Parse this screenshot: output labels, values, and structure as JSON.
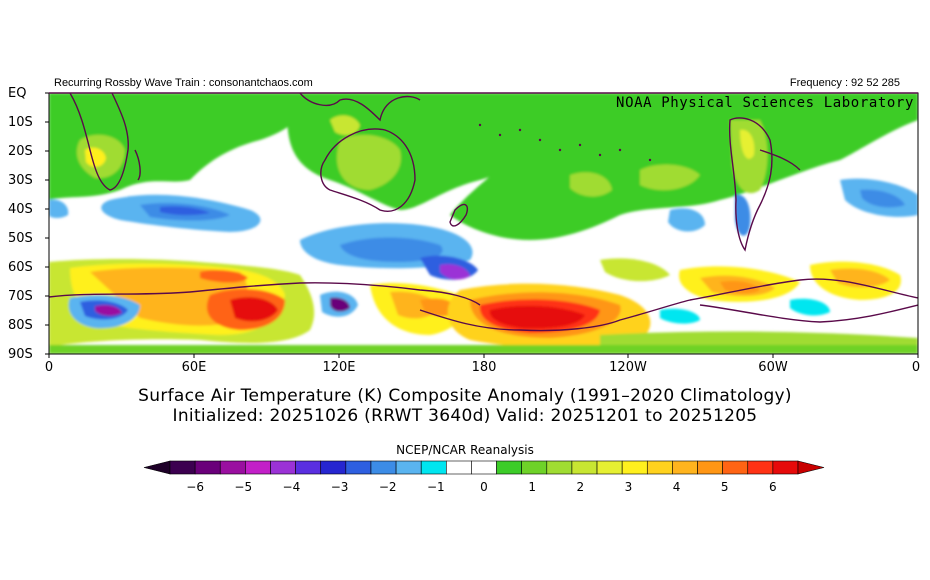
{
  "header": {
    "left_text": "Recurring Rossby Wave Train : consonantchaos.com",
    "right_text": "Frequency : 92 52 285",
    "lab": "NOAA Physical Sciences Laboratory"
  },
  "map": {
    "lat_labels": [
      "EQ",
      "10S",
      "20S",
      "30S",
      "40S",
      "50S",
      "60S",
      "70S",
      "80S",
      "90S"
    ],
    "lon_labels": [
      "0",
      "60E",
      "120E",
      "180",
      "120W",
      "60W",
      "0"
    ]
  },
  "title": {
    "line1": "Surface Air Temperature (K) Composite Anomaly (1991–2020 Climatology)",
    "line2": "Initialized: 20251026 (RRWT 3640d) Valid: 20251201 to 20251205"
  },
  "colorbar": {
    "title": "NCEP/NCAR Reanalysis",
    "labels": [
      "−6",
      "−5",
      "−4",
      "−3",
      "−2",
      "−1",
      "0",
      "1",
      "2",
      "3",
      "4",
      "5",
      "6"
    ],
    "colors": [
      "#3c0050",
      "#6a007a",
      "#9a0fa0",
      "#c21fc8",
      "#9b32d6",
      "#5a2fe0",
      "#2626d0",
      "#2e5fe0",
      "#3c8ce6",
      "#5ab4f0",
      "#00e6f0",
      "#ffffff",
      "#ffffff",
      "#3ccc28",
      "#6ed228",
      "#a0dc32",
      "#c8e632",
      "#e6f032",
      "#fff01e",
      "#ffd21e",
      "#ffb41e",
      "#ff9614",
      "#ff6414",
      "#ff3214",
      "#e60a0a"
    ],
    "under_color": "#1e0028",
    "over_color": "#c80000"
  }
}
